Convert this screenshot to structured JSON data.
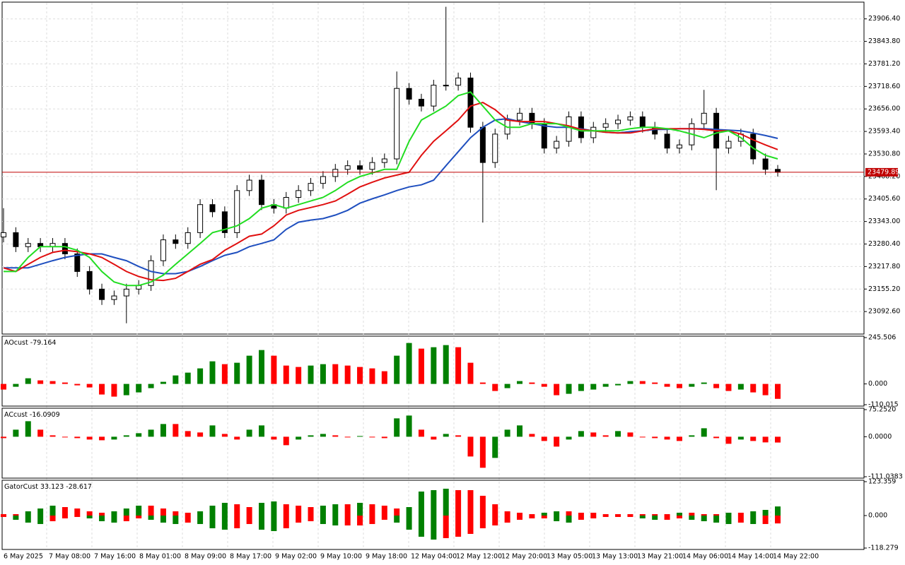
{
  "chart_data": {
    "type": "candlestick",
    "ylim": [
      23032,
      23951
    ],
    "yticks": [
      {
        "value": 23906.4,
        "label": "23906.40"
      },
      {
        "value": 23843.8,
        "label": "23843.80"
      },
      {
        "value": 23781.2,
        "label": "23781.20"
      },
      {
        "value": 23718.6,
        "label": "23718.60"
      },
      {
        "value": 23656,
        "label": "23656.00"
      },
      {
        "value": 23593.4,
        "label": "23593.40"
      },
      {
        "value": 23530.8,
        "label": "23530.80"
      },
      {
        "value": 23468.2,
        "label": "23468.20"
      },
      {
        "value": 23405.6,
        "label": "23405.60"
      },
      {
        "value": 23343,
        "label": "23343.00"
      },
      {
        "value": 23280.4,
        "label": "23280.40"
      },
      {
        "value": 23217.8,
        "label": "23217.80"
      },
      {
        "value": 23155.2,
        "label": "23155.20"
      },
      {
        "value": 23092.6,
        "label": "23092.60"
      }
    ],
    "grid": true,
    "up_color": "#ffffff",
    "down_color": "#000000",
    "price_line_color": "#c00000",
    "time_labels": [
      "6 May 2025",
      "7 May 08:00",
      "7 May 16:00",
      "8 May 01:00",
      "8 May 09:00",
      "8 May 17:00",
      "9 May 02:00",
      "9 May 10:00",
      "9 May 18:00",
      "12 May 04:00",
      "12 May 12:00",
      "12 May 20:00",
      "13 May 05:00",
      "13 May 13:00",
      "13 May 21:00",
      "14 May 06:00",
      "14 May 14:00",
      "14 May 22:00"
    ],
    "ohlc": [
      [
        23300,
        23380,
        23285,
        23312
      ],
      [
        23312,
        23327,
        23258,
        23273
      ],
      [
        23273,
        23297,
        23258,
        23282
      ],
      [
        23282,
        23297,
        23258,
        23273
      ],
      [
        23273,
        23297,
        23258,
        23282
      ],
      [
        23282,
        23297,
        23238,
        23253
      ],
      [
        23253,
        23268,
        23189,
        23204
      ],
      [
        23204,
        23219,
        23140,
        23155
      ],
      [
        23155,
        23170,
        23111,
        23126
      ],
      [
        23126,
        23151,
        23111,
        23136
      ],
      [
        23136,
        23170,
        23060,
        23155
      ],
      [
        23155,
        23180,
        23140,
        23165
      ],
      [
        23165,
        23249,
        23150,
        23234
      ],
      [
        23234,
        23307,
        23219,
        23292
      ],
      [
        23292,
        23307,
        23267,
        23282
      ],
      [
        23282,
        23327,
        23267,
        23312
      ],
      [
        23312,
        23405,
        23297,
        23390
      ],
      [
        23390,
        23405,
        23355,
        23370
      ],
      [
        23370,
        23385,
        23297,
        23312
      ],
      [
        23312,
        23444,
        23297,
        23429
      ],
      [
        23429,
        23473,
        23414,
        23458
      ],
      [
        23458,
        23473,
        23375,
        23390
      ],
      [
        23390,
        23405,
        23365,
        23380
      ],
      [
        23380,
        23425,
        23365,
        23410
      ],
      [
        23410,
        23444,
        23395,
        23429
      ],
      [
        23429,
        23464,
        23414,
        23449
      ],
      [
        23449,
        23483,
        23434,
        23468
      ],
      [
        23468,
        23503,
        23453,
        23488
      ],
      [
        23488,
        23513,
        23473,
        23498
      ],
      [
        23498,
        23513,
        23473,
        23488
      ],
      [
        23488,
        23522,
        23473,
        23507
      ],
      [
        23507,
        23532,
        23492,
        23517
      ],
      [
        23517,
        23760,
        23502,
        23713
      ],
      [
        23713,
        23728,
        23668,
        23683
      ],
      [
        23683,
        23698,
        23649,
        23664
      ],
      [
        23664,
        23737,
        23649,
        23722
      ],
      [
        23722,
        23940,
        23707,
        23722
      ],
      [
        23722,
        23757,
        23707,
        23742
      ],
      [
        23742,
        23757,
        23590,
        23605
      ],
      [
        23605,
        23620,
        23340,
        23507
      ],
      [
        23507,
        23601,
        23492,
        23586
      ],
      [
        23586,
        23640,
        23571,
        23625
      ],
      [
        23625,
        23659,
        23610,
        23644
      ],
      [
        23644,
        23659,
        23600,
        23615
      ],
      [
        23615,
        23630,
        23532,
        23547
      ],
      [
        23547,
        23581,
        23532,
        23566
      ],
      [
        23566,
        23649,
        23551,
        23634
      ],
      [
        23634,
        23649,
        23561,
        23576
      ],
      [
        23576,
        23620,
        23561,
        23605
      ],
      [
        23605,
        23630,
        23590,
        23615
      ],
      [
        23615,
        23640,
        23600,
        23625
      ],
      [
        23625,
        23649,
        23610,
        23634
      ],
      [
        23634,
        23649,
        23590,
        23605
      ],
      [
        23605,
        23620,
        23571,
        23586
      ],
      [
        23586,
        23601,
        23532,
        23547
      ],
      [
        23547,
        23571,
        23532,
        23556
      ],
      [
        23556,
        23630,
        23541,
        23615
      ],
      [
        23615,
        23709,
        23600,
        23644
      ],
      [
        23644,
        23659,
        23430,
        23547
      ],
      [
        23547,
        23581,
        23532,
        23566
      ],
      [
        23566,
        23601,
        23551,
        23586
      ],
      [
        23586,
        23601,
        23502,
        23517
      ],
      [
        23517,
        23532,
        23473,
        23488
      ],
      [
        23488,
        23500,
        23468,
        23479.89
      ]
    ],
    "ma": [
      {
        "color": "#1f4fbf",
        "values": [
          23214,
          23214,
          23214,
          23224,
          23234,
          23243,
          23249,
          23253,
          23253,
          23243,
          23234,
          23218,
          23204,
          23198,
          23198,
          23204,
          23218,
          23234,
          23249,
          23257,
          23273,
          23282,
          23292,
          23321,
          23341,
          23347,
          23351,
          23361,
          23374,
          23394,
          23406,
          23417,
          23429,
          23439,
          23445,
          23458,
          23498,
          23537,
          23576,
          23605,
          23625,
          23629,
          23621,
          23615,
          23609,
          23605,
          23605,
          23601,
          23595,
          23591,
          23589,
          23593,
          23595,
          23599,
          23599,
          23601,
          23601,
          23601,
          23599,
          23597,
          23595,
          23589,
          23582,
          23574
        ]
      },
      {
        "color": "#e01010",
        "values": [
          23214,
          23204,
          23224,
          23243,
          23257,
          23263,
          23259,
          23253,
          23243,
          23224,
          23204,
          23190,
          23181,
          23179,
          23185,
          23204,
          23224,
          23237,
          23263,
          23282,
          23302,
          23308,
          23331,
          23361,
          23374,
          23382,
          23390,
          23400,
          23419,
          23439,
          23452,
          23464,
          23472,
          23480,
          23527,
          23566,
          23595,
          23625,
          23664,
          23674,
          23654,
          23625,
          23621,
          23621,
          23621,
          23615,
          23609,
          23599,
          23595,
          23591,
          23589,
          23589,
          23595,
          23601,
          23601,
          23601,
          23601,
          23599,
          23595,
          23595,
          23586,
          23570,
          23556,
          23543
        ]
      },
      {
        "color": "#22dd22",
        "values": [
          23204,
          23204,
          23243,
          23273,
          23273,
          23273,
          23263,
          23243,
          23204,
          23175,
          23165,
          23165,
          23175,
          23194,
          23224,
          23253,
          23282,
          23312,
          23321,
          23331,
          23351,
          23380,
          23390,
          23380,
          23390,
          23400,
          23410,
          23429,
          23452,
          23468,
          23478,
          23488,
          23488,
          23566,
          23625,
          23644,
          23664,
          23693,
          23703,
          23664,
          23625,
          23605,
          23605,
          23615,
          23615,
          23615,
          23605,
          23595,
          23595,
          23595,
          23595,
          23601,
          23605,
          23605,
          23601,
          23595,
          23586,
          23576,
          23589,
          23595,
          23576,
          23547,
          23527,
          23517
        ]
      }
    ],
    "panels": [
      {
        "type": "histogram",
        "name": "AOcust",
        "up_color": "#008000",
        "down_color": "#ff0000",
        "ylim": [
          -110.015,
          245.506
        ],
        "yticks": [
          245.506,
          {
            "value": 0,
            "label": "0.000"
          },
          -110.015
        ],
        "series": [
          {
            "values": [
              -29.9,
              -15,
              29.9,
              18.7,
              15,
              7.5,
              -7.5,
              -18.7,
              -56.1,
              -67.3,
              -59.8,
              -44.9,
              -22.4,
              11.2,
              44.9,
              59.8,
              82.3,
              119.7,
              104.7,
              112.2,
              149.6,
              179.5,
              149.6,
              97.2,
              89.8,
              97.2,
              104.7,
              104.7,
              97.2,
              89.8,
              82.3,
              67.3,
              149.6,
              216.9,
              187,
              194.5,
              205.7,
              194.5,
              112.2,
              7.5,
              -37.4,
              -22.4,
              15,
              7.5,
              -15,
              -59.8,
              -52.4,
              -37.4,
              -29.9,
              -15,
              -7.5,
              15,
              15,
              7.5,
              -15,
              -22.4,
              -15,
              7.5,
              -22.4,
              -37.4,
              -29.9,
              -44.9,
              -59.8,
              -79.164
            ]
          }
        ]
      },
      {
        "type": "histogram",
        "name": "ACcust",
        "up_color": "#008000",
        "down_color": "#ff0000",
        "ylim": [
          -111.0383,
          75.252
        ],
        "yticks": [
          {
            "value": 75.252,
            "label": "75.2520"
          },
          {
            "value": 0,
            "label": "0.0000"
          },
          -111.0383
        ],
        "series": [
          {
            "values": [
              -3.9,
              19.6,
              43.1,
              19.6,
              3.9,
              0,
              -3.9,
              -7.8,
              -9.8,
              -7.8,
              3.9,
              9.8,
              19.6,
              35.3,
              35.3,
              15.7,
              11.8,
              31.4,
              7.8,
              -7.8,
              19.6,
              31.4,
              -7.8,
              -23.5,
              -7.8,
              3.9,
              7.8,
              3.9,
              0,
              2,
              0,
              -3.9,
              51,
              58.8,
              19.6,
              -7.8,
              7.8,
              3.9,
              -54.9,
              -86.2,
              -58.8,
              19.6,
              31.4,
              7.8,
              -11.8,
              -27.4,
              -7.8,
              15.7,
              11.8,
              3.9,
              15.7,
              11.8,
              0,
              -3.9,
              -7.8,
              -11.8,
              3.9,
              23.5,
              -3.9,
              -19.6,
              -7.8,
              -11.8,
              -15.7,
              -16.0909
            ]
          }
        ]
      },
      {
        "type": "gator",
        "name": "GatorCust",
        "up_color": "#008000",
        "down_color": "#ff0000",
        "ylim": [
          -118.279,
          123.359
        ],
        "yticks": [
          123.359,
          {
            "value": 0,
            "label": "0.000"
          },
          -118.279
        ],
        "series": [
          {
            "values": [
              5.1,
              5.1,
              15.4,
              25.7,
              36,
              30.8,
              25.7,
              15.4,
              10.3,
              15.4,
              25.7,
              36,
              36,
              25.7,
              15.4,
              10.3,
              15.4,
              36,
              46.3,
              41.1,
              30.8,
              46.3,
              51.4,
              41.1,
              36,
              30.8,
              36,
              41.1,
              41.1,
              46.3,
              41.1,
              36,
              25.7,
              30.8,
              87.4,
              92.5,
              97.7,
              92.5,
              92.5,
              72,
              41.1,
              15.4,
              10.3,
              5.1,
              10.3,
              15.4,
              15.4,
              10.3,
              10.3,
              5.1,
              5.1,
              5.1,
              5.1,
              5.1,
              5.1,
              10.3,
              10.3,
              5.1,
              5.1,
              10.3,
              10.3,
              15.4,
              20.6,
              33.123
            ]
          },
          {
            "values": [
              -5.1,
              -15.4,
              -25.7,
              -30.8,
              -20.6,
              -10.3,
              -5.1,
              -10.3,
              -20.6,
              -25.7,
              -20.6,
              -10.3,
              -15.4,
              -25.7,
              -30.8,
              -25.7,
              -30.8,
              -46.3,
              -51.4,
              -46.3,
              -30.8,
              -51.4,
              -56.5,
              -46.3,
              -25.7,
              -20.6,
              -30.8,
              -36,
              -36,
              -36,
              -30.8,
              -15.4,
              -25.7,
              -51.4,
              -77.1,
              -87.4,
              -82.2,
              -77.1,
              -66.8,
              -46.3,
              -36,
              -25.7,
              -15.4,
              -10.3,
              -10.3,
              -20.6,
              -25.7,
              -15.4,
              -10.3,
              -5.1,
              -5.1,
              -5.1,
              -10.3,
              -15.4,
              -15.4,
              -10.3,
              -15.4,
              -20.6,
              -25.7,
              -30.8,
              -25.7,
              -30.8,
              -30.8,
              -28.617
            ]
          }
        ]
      }
    ]
  }
}
